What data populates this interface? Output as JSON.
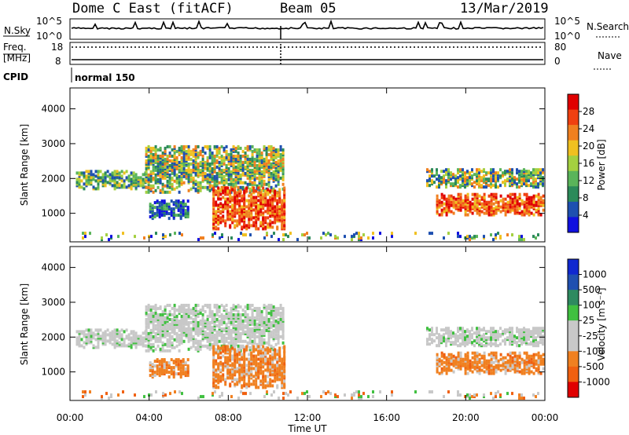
{
  "header": {
    "title": "Dome C East (fitACF)",
    "beam": "Beam 05",
    "date": "13/Mar/2019"
  },
  "strip_labels": {
    "nsky": "N.Sky",
    "nsearch": "N.Search",
    "freq": "Freq.",
    "freq_unit": "[MHz]",
    "nave": "Nave",
    "cpid": "CPID",
    "cpid_value": "normal 150",
    "nsky_ticks": [
      "10^5",
      "10^0"
    ],
    "nsearch_ticks": [
      "10^5",
      "10^0"
    ],
    "freq_ticks": [
      "18",
      "8"
    ],
    "nave_ticks": [
      "80",
      "0"
    ]
  },
  "colors": {
    "power_scale": [
      "#1010e0",
      "#1e50b0",
      "#2b8a5a",
      "#5ab45a",
      "#a4d040",
      "#f0c020",
      "#f08020",
      "#f04010",
      "#e00000"
    ],
    "velocity_scale": [
      "#e00000",
      "#f06010",
      "#f08020",
      "#c8c8c8",
      "#c8c8c8",
      "#40c040",
      "#2e8a60",
      "#2050b0",
      "#1028d0"
    ]
  },
  "chart_data": [
    {
      "type": "heatmap",
      "name": "power",
      "ylabel": "Slant Range [km]",
      "xlabel": "",
      "colorbar_label": "Power [dB]",
      "colorbar_ticks": [
        "28",
        "24",
        "20",
        "16",
        "12",
        "8",
        "4"
      ],
      "y_ticks": [
        "4000",
        "3000",
        "2000",
        "1000"
      ],
      "ylim": [
        180,
        4600
      ],
      "xlim": [
        0,
        24
      ],
      "regions": [
        {
          "t": [
            0.3,
            3.8
          ],
          "r": [
            1750,
            2250
          ],
          "level": "low-mid"
        },
        {
          "t": [
            3.8,
            10.8
          ],
          "r": [
            1650,
            3000
          ],
          "level": "mid"
        },
        {
          "t": [
            7.2,
            10.8
          ],
          "r": [
            600,
            1800
          ],
          "level": "high"
        },
        {
          "t": [
            4.0,
            6.0
          ],
          "r": [
            900,
            1400
          ],
          "level": "low"
        },
        {
          "t": [
            18.0,
            23.9
          ],
          "r": [
            1800,
            2300
          ],
          "level": "mid"
        },
        {
          "t": [
            18.5,
            23.9
          ],
          "r": [
            1000,
            1600
          ],
          "level": "high"
        },
        {
          "t": [
            0.0,
            24.0
          ],
          "r": [
            200,
            500
          ],
          "level": "noise"
        }
      ]
    },
    {
      "type": "heatmap",
      "name": "velocity",
      "ylabel": "Slant Range [km]",
      "xlabel": "Time UT",
      "colorbar_label": "Velocity [m s⁻¹]",
      "colorbar_ticks": [
        "1000",
        "500",
        "100",
        "25",
        "-25",
        "-100",
        "-500",
        "-1000"
      ],
      "y_ticks": [
        "4000",
        "3000",
        "2000",
        "1000"
      ],
      "x_ticks": [
        "00:00",
        "04:00",
        "08:00",
        "12:00",
        "16:00",
        "20:00",
        "00:00"
      ],
      "ylim": [
        180,
        4600
      ],
      "xlim": [
        0,
        24
      ],
      "regions": [
        {
          "t": [
            0.3,
            3.8
          ],
          "r": [
            1750,
            2250
          ],
          "level": "ground"
        },
        {
          "t": [
            3.8,
            10.8
          ],
          "r": [
            1650,
            3000
          ],
          "level": "ground"
        },
        {
          "t": [
            7.2,
            10.8
          ],
          "r": [
            600,
            1800
          ],
          "level": "away"
        },
        {
          "t": [
            4.0,
            6.0
          ],
          "r": [
            900,
            1400
          ],
          "level": "away"
        },
        {
          "t": [
            18.0,
            23.9
          ],
          "r": [
            1800,
            2300
          ],
          "level": "ground"
        },
        {
          "t": [
            18.5,
            23.9
          ],
          "r": [
            1000,
            1600
          ],
          "level": "away"
        },
        {
          "t": [
            0.0,
            24.0
          ],
          "r": [
            200,
            500
          ],
          "level": "noise"
        }
      ]
    }
  ]
}
